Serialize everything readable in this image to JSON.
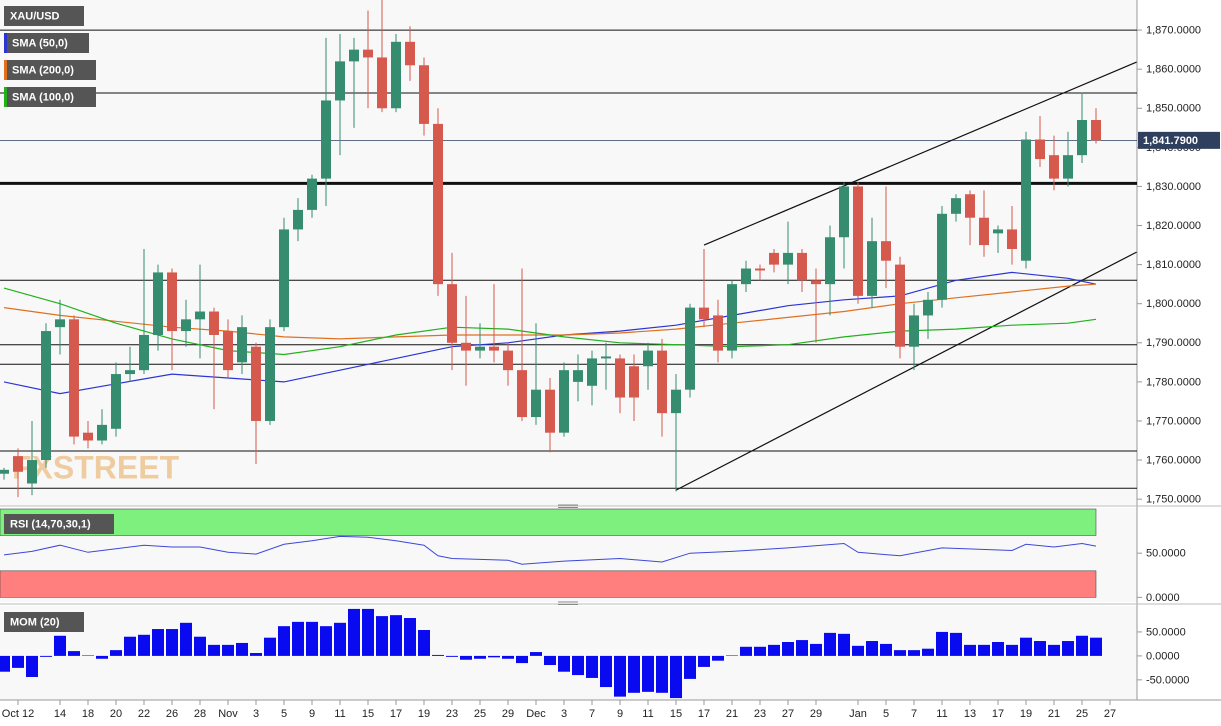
{
  "chart_data": [
    {
      "type": "candlestick",
      "title": "XAU/USD",
      "watermark": "FXSTREET",
      "categories": [
        null,
        "Oct 12",
        null,
        null,
        "14",
        null,
        "18",
        null,
        "20",
        null,
        "22",
        null,
        "26",
        null,
        "28",
        null,
        "Nov",
        null,
        "3",
        null,
        "5",
        null,
        "9",
        null,
        "11",
        null,
        "15",
        null,
        "17",
        null,
        "19",
        null,
        "23",
        null,
        "25",
        null,
        "29",
        null,
        "Dec",
        null,
        "3",
        null,
        "7",
        null,
        "9",
        null,
        "11",
        null,
        "15",
        null,
        "17",
        null,
        "21",
        null,
        "23",
        null,
        "27",
        null,
        "29",
        null,
        null,
        "Jan",
        null,
        "5",
        null,
        "7",
        null,
        "11",
        null,
        "13",
        null,
        "17",
        null,
        "19",
        null,
        "21",
        null,
        "25",
        null,
        "27"
      ],
      "open": [
        1756.5,
        1761,
        1754,
        1760,
        1794,
        1796,
        1767,
        1765,
        1768,
        1782,
        1783,
        1792,
        1808,
        1793,
        1796,
        1798,
        1793,
        1785,
        1789,
        1770,
        1794,
        1819,
        1824,
        1832,
        1852,
        1862,
        1865,
        1863,
        1850,
        1867,
        1861,
        1846,
        1805,
        1790,
        1788,
        1789,
        1788,
        1783,
        1771,
        1778,
        1767,
        1780,
        1779,
        1786,
        1786,
        1784,
        1784,
        1788,
        1772,
        1778,
        1799,
        1797,
        1788,
        1805,
        1809,
        1813,
        1810,
        1813,
        1806,
        1805,
        1817,
        1830,
        1802,
        1816,
        1810,
        1789,
        1797,
        1801,
        1823,
        1828,
        1822,
        1818,
        1819,
        1811,
        1842,
        1838,
        1832,
        1838,
        1847,
        null
      ],
      "high": [
        1758,
        1763,
        1770,
        1795,
        1801,
        1797,
        1770,
        1773,
        1785,
        1789,
        1814,
        1810,
        1809,
        1801,
        1810,
        1799,
        1796,
        1797,
        1790,
        1796,
        1822,
        1827,
        1833,
        1868,
        1869,
        1868,
        1875,
        1878,
        1869,
        1871,
        1863,
        1850,
        1813,
        1802,
        1795,
        1805,
        1790,
        1809,
        1795,
        1781,
        1785,
        1787,
        1788,
        1790,
        1787,
        1787,
        1790,
        1791,
        1782,
        1800,
        1814,
        1801,
        1806,
        1811,
        1810,
        1814,
        1821,
        1814,
        1809,
        1820,
        1831,
        1831,
        1822,
        1830,
        1812,
        1800,
        1803,
        1825,
        1828,
        1829,
        1829,
        1820,
        1825,
        1844,
        1848,
        1843,
        1844,
        1854,
        1850,
        null
      ],
      "low": [
        1755,
        1750.5,
        1751,
        1758,
        1787,
        1764,
        1763,
        1764,
        1766,
        1780,
        1782,
        1788,
        1783,
        1789,
        1786,
        1773,
        1781,
        1782,
        1759,
        1769,
        1793,
        1816,
        1822,
        1825,
        1838,
        1845,
        1850,
        1849,
        1849,
        1857,
        1843,
        1802,
        1783,
        1779,
        1786,
        1785,
        1779,
        1770,
        1769,
        1762,
        1766,
        1775,
        1774,
        1778,
        1772,
        1770,
        1778,
        1766,
        1752,
        1776,
        1794,
        1785,
        1786,
        1803,
        1806,
        1808,
        1805,
        1803,
        1790,
        1797,
        1809,
        1800,
        1799,
        1804,
        1786,
        1783,
        1791,
        1799,
        1821,
        1815,
        1812,
        1813,
        1810,
        1809,
        1835,
        1829,
        1830,
        1836,
        1841,
        null
      ],
      "close": [
        1757.5,
        1757,
        1760,
        1793,
        1796,
        1766,
        1765,
        1769,
        1782,
        1783,
        1792,
        1808,
        1793,
        1796,
        1798,
        1792,
        1783,
        1794,
        1770,
        1794,
        1819,
        1824,
        1832,
        1852,
        1862,
        1865,
        1863,
        1850,
        1867,
        1861,
        1846,
        1805,
        1790,
        1788,
        1789,
        1788,
        1783,
        1771,
        1778,
        1767,
        1783,
        1783,
        1786,
        1786.5,
        1776,
        1776,
        1788,
        1772,
        1778,
        1799,
        1796,
        1788,
        1805,
        1809,
        1808.5,
        1810,
        1813,
        1806,
        1805,
        1817,
        1830,
        1802,
        1816,
        1811,
        1789,
        1797,
        1801,
        1823,
        1827,
        1822,
        1815,
        1819,
        1814,
        1842,
        1837,
        1832,
        1838,
        1847,
        1841.79,
        null
      ],
      "up_color": "#358c6e",
      "down_color": "#d6594d",
      "overlays": [
        {
          "name": "SMA (50,0)",
          "color": "#2b35d4",
          "x": [
            0,
            4,
            8,
            12,
            16,
            20,
            24,
            28,
            32,
            36,
            40,
            44,
            48,
            52,
            56,
            60,
            64,
            68,
            72,
            76,
            78
          ],
          "values": [
            1780,
            1777,
            1779.5,
            1782,
            1781,
            1780,
            1783,
            1786,
            1789,
            1790,
            1792,
            1793,
            1794.5,
            1797,
            1799.5,
            1801,
            1802,
            1806,
            1808,
            1806.5,
            1805
          ]
        },
        {
          "name": "SMA (200,0)",
          "color": "#e07020",
          "x": [
            0,
            4,
            8,
            12,
            16,
            20,
            24,
            28,
            32,
            36,
            40,
            44,
            48,
            52,
            56,
            60,
            64,
            68,
            72,
            76,
            78
          ],
          "values": [
            1799,
            1797,
            1795.5,
            1794,
            1793,
            1791.5,
            1791,
            1791.5,
            1792,
            1792,
            1792,
            1792.5,
            1793.5,
            1795,
            1796.5,
            1798,
            1800,
            1801.5,
            1803,
            1804.5,
            1805
          ]
        },
        {
          "name": "SMA (100,0)",
          "color": "#21b21b",
          "x": [
            0,
            4,
            8,
            12,
            16,
            20,
            24,
            28,
            32,
            36,
            40,
            44,
            48,
            52,
            56,
            60,
            64,
            68,
            72,
            76,
            78
          ],
          "values": [
            1804,
            1800,
            1795,
            1791,
            1788,
            1787,
            1789,
            1792,
            1794,
            1793.5,
            1791.5,
            1790,
            1789.5,
            1789,
            1789.5,
            1791.5,
            1793,
            1793.5,
            1794.5,
            1795,
            1796
          ]
        }
      ],
      "hlines": [
        {
          "value": 1870
        },
        {
          "value": 1853.9
        },
        {
          "value": 1830.8,
          "width": 3
        },
        {
          "value": 1806
        },
        {
          "value": 1789.5
        },
        {
          "value": 1784.5
        },
        {
          "value": 1762.3
        },
        {
          "value": 1752.8
        }
      ],
      "trendlines": [
        {
          "x": [
            50,
            80.9
          ],
          "values": [
            1815,
            1861.8
          ]
        },
        {
          "x": [
            48,
            80.9
          ],
          "values": [
            1752.3,
            1813.2
          ]
        }
      ],
      "last_price": {
        "value": 1841.79,
        "label": "1,841.7900",
        "color": "#2f3f5e"
      },
      "ylim": [
        1748.5,
        1877.7
      ],
      "yticks": [
        {
          "value": 1750,
          "label": "1,750.0000"
        },
        {
          "value": 1760,
          "label": "1,760.0000"
        },
        {
          "value": 1770,
          "label": "1,770.0000"
        },
        {
          "value": 1780,
          "label": "1,780.0000"
        },
        {
          "value": 1790,
          "label": "1,790.0000"
        },
        {
          "value": 1800,
          "label": "1,800.0000"
        },
        {
          "value": 1810,
          "label": "1,810.0000"
        },
        {
          "value": 1820,
          "label": "1,820.0000"
        },
        {
          "value": 1830,
          "label": "1,830.0000"
        },
        {
          "value": 1840,
          "label": "1,840.0000"
        },
        {
          "value": 1850,
          "label": "1,850.0000"
        },
        {
          "value": 1860,
          "label": "1,860.0000"
        },
        {
          "value": 1870,
          "label": "1,870.0000"
        }
      ]
    },
    {
      "type": "line",
      "title": "RSI (14,70,30,1)",
      "color": "#3d47d9",
      "x": [
        0,
        2,
        4,
        6,
        8,
        10,
        12,
        14,
        16,
        18,
        20,
        22,
        24,
        26,
        28,
        30,
        31,
        32,
        36,
        37,
        40,
        44,
        47,
        49,
        52,
        56,
        60,
        61,
        64,
        67,
        72,
        73,
        75,
        77,
        78
      ],
      "values": [
        48,
        52,
        59,
        51,
        55,
        59,
        57,
        57,
        51,
        49,
        60,
        64,
        69,
        68,
        64,
        59,
        47,
        44,
        42,
        37.5,
        41,
        44,
        40,
        50,
        52,
        56,
        61,
        51,
        47,
        56,
        53,
        60,
        57,
        61,
        58
      ],
      "bands": [
        {
          "range": [
            70,
            100
          ],
          "color": "#7df07d"
        },
        {
          "range": [
            0,
            30
          ],
          "color": "#ff7f7f"
        }
      ],
      "ylim": [
        -3,
        100
      ],
      "yticks": [
        {
          "value": 0,
          "label": "0.0000"
        },
        {
          "value": 50,
          "label": "50.0000"
        }
      ]
    },
    {
      "type": "bar",
      "title": "MOM (20)",
      "color": "#0a0af0",
      "values": [
        -33,
        -25,
        -44,
        -2,
        42,
        10,
        1,
        -6,
        12,
        40,
        44,
        56,
        56,
        69,
        40,
        23,
        23,
        27,
        6,
        38,
        62,
        71,
        71,
        62,
        69,
        98,
        98,
        83,
        85,
        79,
        54,
        2,
        -2,
        -8,
        -6,
        -3,
        -6,
        -15,
        8,
        -19,
        -33,
        -40,
        -46,
        -65,
        -85,
        -77,
        -75,
        -77,
        -88,
        -48,
        -23,
        -10,
        1,
        19,
        19,
        23,
        29,
        33,
        25,
        48,
        46,
        21,
        31,
        25,
        12,
        12,
        15,
        50,
        48,
        23,
        23,
        29,
        23,
        38,
        31,
        23,
        31,
        42,
        38,
        null
      ],
      "ylim": [
        -92,
        102
      ],
      "yticks": [
        {
          "value": -50,
          "label": "-50.0000"
        },
        {
          "value": 0,
          "label": "0.0000"
        },
        {
          "value": 50,
          "label": "50.0000"
        }
      ]
    }
  ]
}
